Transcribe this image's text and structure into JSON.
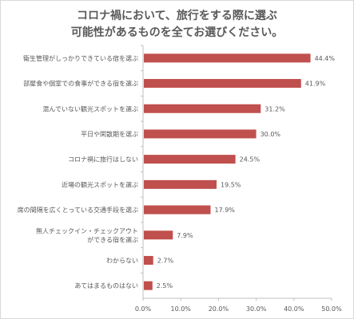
{
  "chart_data": {
    "type": "bar",
    "orientation": "horizontal",
    "title_lines": [
      "コロナ禍において、旅行をする際に選ぶ",
      "可能性があるものを全てお選びください。"
    ],
    "categories": [
      [
        "衛生管理がしっかりできている宿を選ぶ"
      ],
      [
        "部屋食や個室での食事ができる宿を選ぶ"
      ],
      [
        "混んでいない観光スポットを選ぶ"
      ],
      [
        "平日や閑散期を選ぶ"
      ],
      [
        "コロナ禍に旅行はしない"
      ],
      [
        "近場の観光スポットを選ぶ"
      ],
      [
        "席の間隔を広くとっている交通手段を選ぶ"
      ],
      [
        "無人チェックイン・チェックアウト",
        "ができる宿を選ぶ"
      ],
      [
        "わからない"
      ],
      [
        "あてはまるものはない"
      ]
    ],
    "values": [
      44.4,
      41.9,
      31.2,
      30.0,
      24.5,
      19.5,
      17.9,
      7.9,
      2.7,
      2.5
    ],
    "value_labels": [
      "44.4%",
      "41.9%",
      "31.2%",
      "30.0%",
      "24.5%",
      "19.5%",
      "17.9%",
      "7.9%",
      "2.7%",
      "2.5%"
    ],
    "xlim": [
      0,
      50
    ],
    "x_ticks": [
      "0.0%",
      "10.0%",
      "20.0%",
      "30.0%",
      "40.0%",
      "50.0%"
    ],
    "bar_color": "#c0504d",
    "axis_color": "#bfbfbf",
    "text_color": "#595959",
    "grid": false
  }
}
